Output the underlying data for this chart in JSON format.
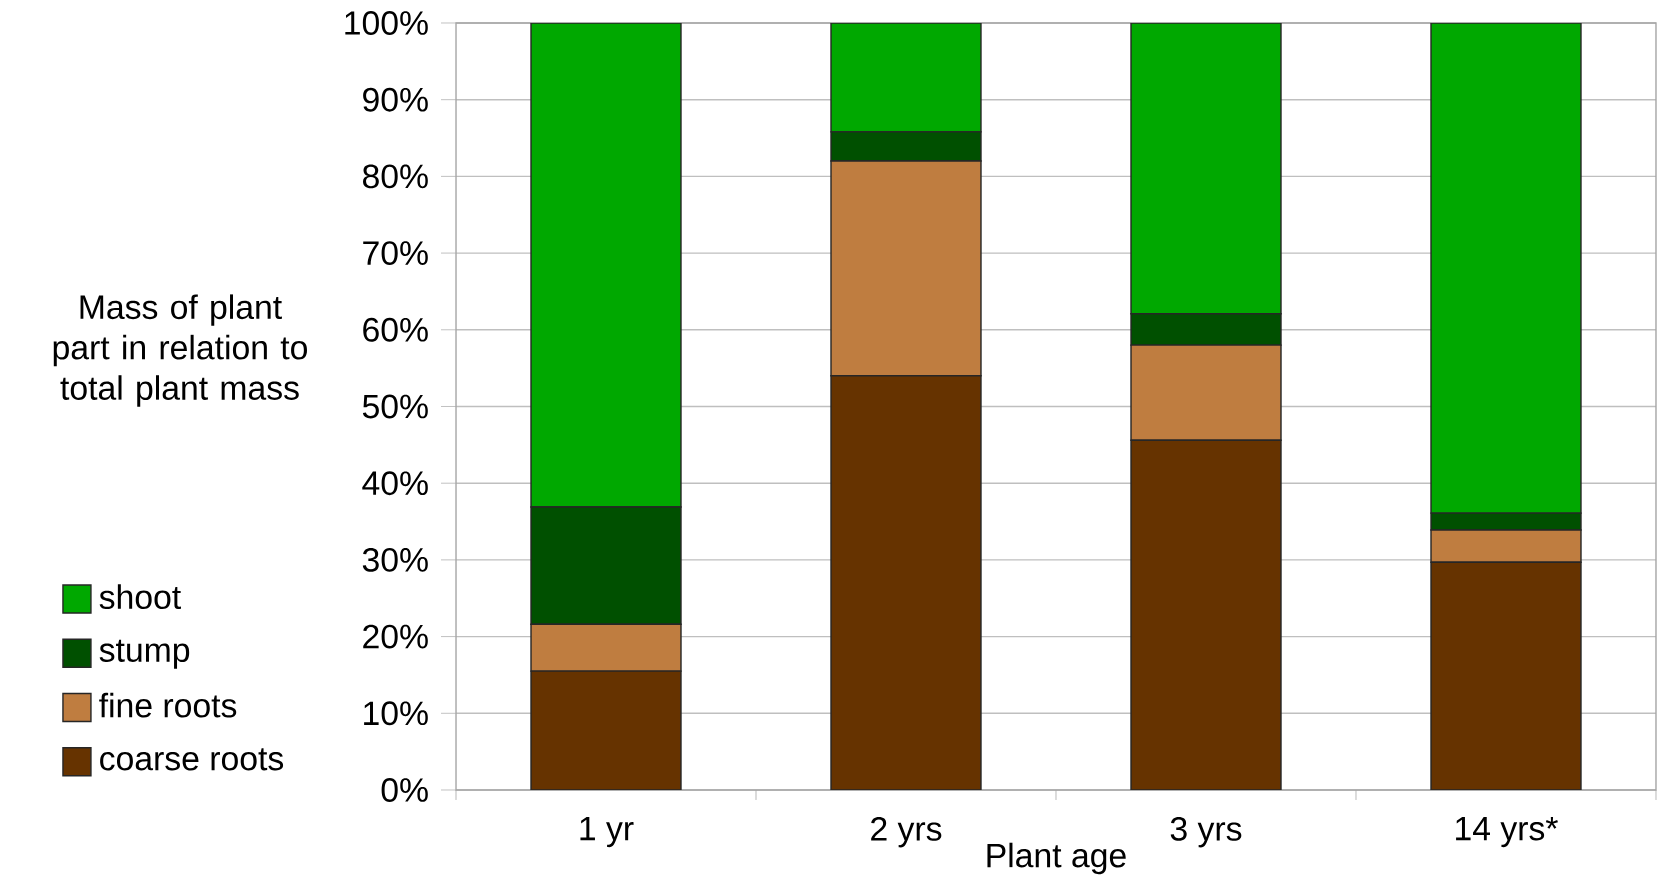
{
  "chart_data": {
    "type": "bar",
    "stacked": true,
    "xlabel": "Plant age",
    "ylabel": "Mass of plant part in relation to total plant mass",
    "categories": [
      "1 yr",
      "2 yrs",
      "3 yrs",
      "14 yrs*"
    ],
    "series": [
      {
        "name": "coarse roots",
        "color": "#663300",
        "values": [
          15.5,
          54,
          45.6,
          29.7
        ]
      },
      {
        "name": "fine roots",
        "color": "#bf7d40",
        "values": [
          6.1,
          28,
          12.4,
          4.2
        ]
      },
      {
        "name": "stump",
        "color": "#005000",
        "values": [
          15.3,
          3.8,
          4.1,
          2.2
        ]
      },
      {
        "name": "shoot",
        "color": "#00a800",
        "values": [
          63.1,
          14.2,
          37.9,
          63.9
        ]
      }
    ],
    "ylim": [
      0,
      100
    ],
    "yticks": [
      {
        "value": 0,
        "label": "0%"
      },
      {
        "value": 10,
        "label": "10%"
      },
      {
        "value": 20,
        "label": "20%"
      },
      {
        "value": 30,
        "label": "30%"
      },
      {
        "value": 40,
        "label": "40%"
      },
      {
        "value": 50,
        "label": "50%"
      },
      {
        "value": 60,
        "label": "60%"
      },
      {
        "value": 70,
        "label": "70%"
      },
      {
        "value": 80,
        "label": "80%"
      },
      {
        "value": 90,
        "label": "90%"
      },
      {
        "value": 100,
        "label": "100%"
      }
    ],
    "grid": "y",
    "legend": "left"
  }
}
